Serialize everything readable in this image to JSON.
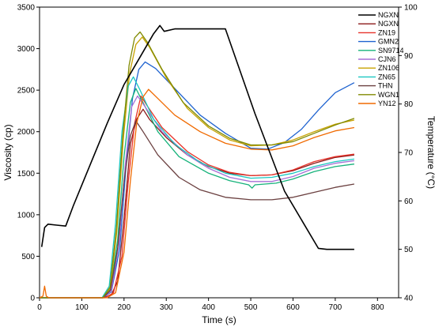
{
  "chart_data": {
    "type": "line",
    "title": "",
    "xlabel": "Time (s)",
    "ylabel": "Viscosity (cp)",
    "y2label": "Temperature (°C)",
    "xlim": [
      0,
      850
    ],
    "ylim": [
      0,
      3500
    ],
    "y2lim": [
      40,
      100
    ],
    "xticks": [
      "0",
      "100",
      "200",
      "300",
      "400",
      "500",
      "600",
      "700",
      "800"
    ],
    "yticks": [
      "0",
      "500",
      "1000",
      "1500",
      "2000",
      "2500",
      "3000",
      "3500"
    ],
    "y2ticks": [
      "40",
      "50",
      "60",
      "70",
      "80",
      "90",
      "100"
    ],
    "grid": false,
    "legend_position": "top-right",
    "temperature": {
      "name": "NGXN",
      "color": "#000000",
      "points": [
        [
          5,
          50.5
        ],
        [
          12,
          54.5
        ],
        [
          20,
          55.2
        ],
        [
          40,
          55
        ],
        [
          62,
          54.8
        ],
        [
          80,
          59
        ],
        [
          120,
          67.5
        ],
        [
          160,
          76
        ],
        [
          200,
          84
        ],
        [
          240,
          90
        ],
        [
          270,
          94.5
        ],
        [
          285,
          96.2
        ],
        [
          295,
          95
        ],
        [
          320,
          95.5
        ],
        [
          400,
          95.5
        ],
        [
          440,
          95.5
        ],
        [
          510,
          78
        ],
        [
          580,
          62
        ],
        [
          660,
          50.2
        ],
        [
          680,
          50
        ],
        [
          745,
          50
        ]
      ]
    },
    "series": [
      {
        "name": "NGXN",
        "color": "#8b1a1a",
        "points": [
          [
            0,
            0
          ],
          [
            150,
            0
          ],
          [
            170,
            35
          ],
          [
            185,
            200
          ],
          [
            200,
            950
          ],
          [
            215,
            1850
          ],
          [
            230,
            2150
          ],
          [
            245,
            2270
          ],
          [
            260,
            2150
          ],
          [
            300,
            1930
          ],
          [
            350,
            1720
          ],
          [
            400,
            1580
          ],
          [
            450,
            1500
          ],
          [
            500,
            1470
          ],
          [
            550,
            1480
          ],
          [
            600,
            1530
          ],
          [
            650,
            1620
          ],
          [
            700,
            1690
          ],
          [
            745,
            1720
          ]
        ]
      },
      {
        "name": "ZN19",
        "color": "#e8332a",
        "points": [
          [
            0,
            0
          ],
          [
            155,
            0
          ],
          [
            175,
            60
          ],
          [
            195,
            500
          ],
          [
            210,
            1400
          ],
          [
            225,
            2100
          ],
          [
            240,
            2430
          ],
          [
            255,
            2310
          ],
          [
            290,
            2050
          ],
          [
            350,
            1760
          ],
          [
            400,
            1600
          ],
          [
            450,
            1510
          ],
          [
            500,
            1470
          ],
          [
            550,
            1480
          ],
          [
            600,
            1540
          ],
          [
            650,
            1640
          ],
          [
            700,
            1700
          ],
          [
            745,
            1730
          ]
        ]
      },
      {
        "name": "GMN2",
        "color": "#1f63d0",
        "points": [
          [
            0,
            0
          ],
          [
            150,
            0
          ],
          [
            170,
            70
          ],
          [
            190,
            600
          ],
          [
            205,
            1600
          ],
          [
            220,
            2400
          ],
          [
            235,
            2750
          ],
          [
            250,
            2840
          ],
          [
            275,
            2760
          ],
          [
            320,
            2520
          ],
          [
            380,
            2200
          ],
          [
            440,
            1980
          ],
          [
            500,
            1800
          ],
          [
            540,
            1790
          ],
          [
            580,
            1870
          ],
          [
            620,
            2030
          ],
          [
            660,
            2260
          ],
          [
            700,
            2470
          ],
          [
            745,
            2590
          ]
        ]
      },
      {
        "name": "SN9714",
        "color": "#15b27a",
        "points": [
          [
            0,
            0
          ],
          [
            150,
            0
          ],
          [
            168,
            100
          ],
          [
            185,
            700
          ],
          [
            200,
            1700
          ],
          [
            215,
            2350
          ],
          [
            228,
            2520
          ],
          [
            245,
            2350
          ],
          [
            280,
            2000
          ],
          [
            330,
            1700
          ],
          [
            400,
            1500
          ],
          [
            450,
            1410
          ],
          [
            495,
            1360
          ],
          [
            503,
            1320
          ],
          [
            510,
            1360
          ],
          [
            560,
            1380
          ],
          [
            600,
            1430
          ],
          [
            650,
            1520
          ],
          [
            700,
            1580
          ],
          [
            745,
            1610
          ]
        ]
      },
      {
        "name": "CJN6",
        "color": "#a76fd6",
        "points": [
          [
            0,
            0
          ],
          [
            150,
            0
          ],
          [
            170,
            80
          ],
          [
            188,
            650
          ],
          [
            203,
            1600
          ],
          [
            218,
            2300
          ],
          [
            232,
            2430
          ],
          [
            250,
            2300
          ],
          [
            290,
            2000
          ],
          [
            350,
            1720
          ],
          [
            400,
            1560
          ],
          [
            450,
            1450
          ],
          [
            500,
            1400
          ],
          [
            550,
            1400
          ],
          [
            600,
            1460
          ],
          [
            650,
            1560
          ],
          [
            700,
            1620
          ],
          [
            745,
            1650
          ]
        ]
      },
      {
        "name": "ZN106",
        "color": "#c8a200",
        "points": [
          [
            0,
            0
          ],
          [
            150,
            0
          ],
          [
            168,
            120
          ],
          [
            183,
            800
          ],
          [
            198,
            1900
          ],
          [
            213,
            2700
          ],
          [
            228,
            3050
          ],
          [
            243,
            3140
          ],
          [
            260,
            3020
          ],
          [
            300,
            2650
          ],
          [
            350,
            2280
          ],
          [
            400,
            2050
          ],
          [
            450,
            1900
          ],
          [
            500,
            1830
          ],
          [
            550,
            1840
          ],
          [
            600,
            1900
          ],
          [
            650,
            2000
          ],
          [
            700,
            2090
          ],
          [
            745,
            2140
          ]
        ]
      },
      {
        "name": "ZN65",
        "color": "#1bc7c1",
        "points": [
          [
            0,
            0
          ],
          [
            148,
            0
          ],
          [
            165,
            140
          ],
          [
            180,
            900
          ],
          [
            195,
            2000
          ],
          [
            210,
            2550
          ],
          [
            222,
            2660
          ],
          [
            238,
            2500
          ],
          [
            270,
            2150
          ],
          [
            320,
            1850
          ],
          [
            380,
            1630
          ],
          [
            440,
            1500
          ],
          [
            500,
            1440
          ],
          [
            550,
            1450
          ],
          [
            600,
            1500
          ],
          [
            650,
            1580
          ],
          [
            700,
            1640
          ],
          [
            745,
            1670
          ]
        ]
      },
      {
        "name": "THN",
        "color": "#6b4040",
        "points": [
          [
            0,
            0
          ],
          [
            150,
            0
          ],
          [
            168,
            90
          ],
          [
            185,
            600
          ],
          [
            200,
            1400
          ],
          [
            215,
            1950
          ],
          [
            228,
            2130
          ],
          [
            245,
            2000
          ],
          [
            280,
            1720
          ],
          [
            330,
            1450
          ],
          [
            380,
            1300
          ],
          [
            440,
            1210
          ],
          [
            500,
            1180
          ],
          [
            550,
            1180
          ],
          [
            600,
            1210
          ],
          [
            650,
            1270
          ],
          [
            700,
            1330
          ],
          [
            745,
            1370
          ]
        ]
      },
      {
        "name": "WGN1",
        "color": "#808a00",
        "points": [
          [
            0,
            0
          ],
          [
            150,
            0
          ],
          [
            167,
            130
          ],
          [
            182,
            850
          ],
          [
            197,
            1950
          ],
          [
            212,
            2800
          ],
          [
            225,
            3130
          ],
          [
            238,
            3200
          ],
          [
            255,
            3080
          ],
          [
            290,
            2750
          ],
          [
            340,
            2350
          ],
          [
            400,
            2070
          ],
          [
            450,
            1920
          ],
          [
            500,
            1840
          ],
          [
            550,
            1840
          ],
          [
            600,
            1880
          ],
          [
            650,
            1980
          ],
          [
            700,
            2080
          ],
          [
            745,
            2160
          ]
        ]
      },
      {
        "name": "YN12",
        "color": "#f06a00",
        "points": [
          [
            0,
            0
          ],
          [
            8,
            20
          ],
          [
            12,
            140
          ],
          [
            16,
            20
          ],
          [
            22,
            0
          ],
          [
            160,
            0
          ],
          [
            180,
            60
          ],
          [
            200,
            550
          ],
          [
            215,
            1400
          ],
          [
            230,
            2100
          ],
          [
            245,
            2420
          ],
          [
            258,
            2510
          ],
          [
            280,
            2400
          ],
          [
            320,
            2200
          ],
          [
            380,
            2000
          ],
          [
            440,
            1860
          ],
          [
            500,
            1790
          ],
          [
            550,
            1780
          ],
          [
            600,
            1830
          ],
          [
            650,
            1930
          ],
          [
            700,
            2010
          ],
          [
            745,
            2050
          ]
        ]
      }
    ]
  }
}
